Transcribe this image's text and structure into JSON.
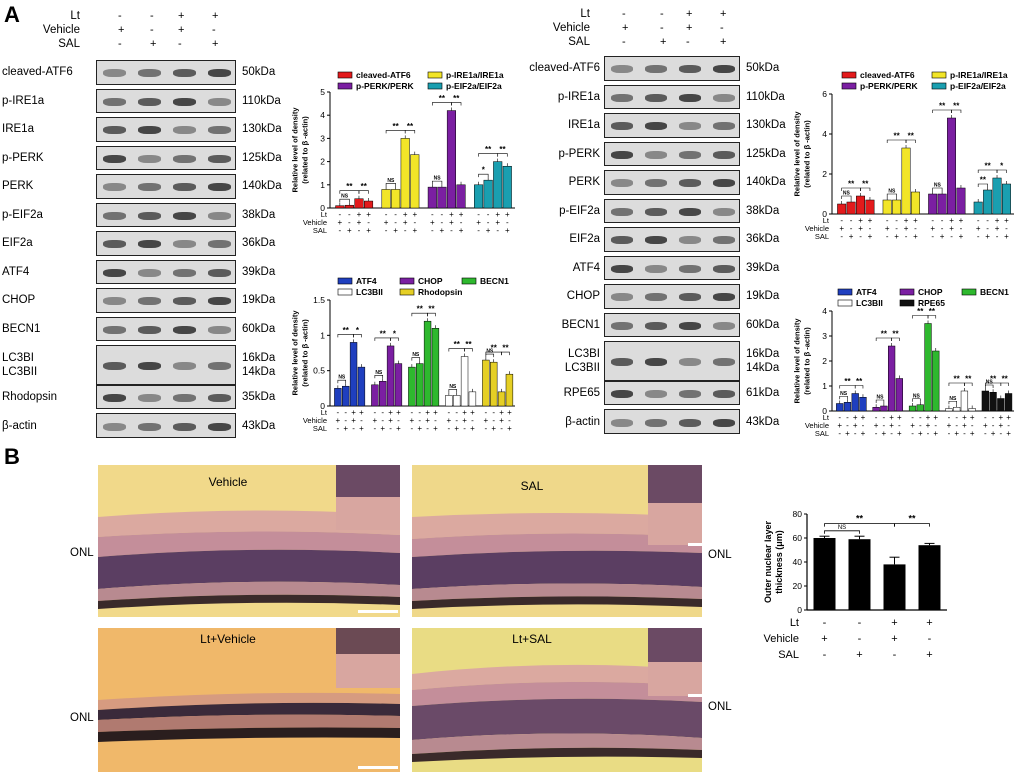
{
  "panelA": {
    "letter": "A",
    "left": {
      "conditions": [
        {
          "label": "Lt",
          "signs": [
            "-",
            "-",
            "+",
            "+"
          ]
        },
        {
          "label": "Vehicle",
          "signs": [
            "+",
            "-",
            "+",
            "-"
          ]
        },
        {
          "label": "SAL",
          "signs": [
            "-",
            "+",
            "-",
            "+"
          ]
        }
      ],
      "blots": [
        {
          "label": "cleaved-ATF6",
          "kda": "50kDa"
        },
        {
          "label": "p-IRE1a",
          "kda": "110kDa"
        },
        {
          "label": "IRE1a",
          "kda": "130kDa"
        },
        {
          "label": "p-PERK",
          "kda": "125kDa"
        },
        {
          "label": "PERK",
          "kda": "140kDa"
        },
        {
          "label": "p-EIF2a",
          "kda": "38kDa"
        },
        {
          "label": "EIF2a",
          "kda": "36kDa"
        },
        {
          "label": "ATF4",
          "kda": "39kDa"
        },
        {
          "label": "CHOP",
          "kda": "19kDa"
        },
        {
          "label": "BECN1",
          "kda": "60kDa"
        },
        {
          "label": "LC3BI\nLC3BII",
          "kda": "16kDa\n14kDa"
        },
        {
          "label": "Rhodopsin",
          "kda": "35kDa"
        },
        {
          "label": "β-actin",
          "kda": "43kDa"
        }
      ]
    },
    "right": {
      "conditions": [
        {
          "label": "Lt",
          "signs": [
            "-",
            "-",
            "+",
            "+"
          ]
        },
        {
          "label": "Vehicle",
          "signs": [
            "+",
            "-",
            "+",
            "-"
          ]
        },
        {
          "label": "SAL",
          "signs": [
            "-",
            "+",
            "-",
            "+"
          ]
        }
      ],
      "blots": [
        {
          "label": "cleaved-ATF6",
          "kda": "50kDa"
        },
        {
          "label": "p-IRE1a",
          "kda": "110kDa"
        },
        {
          "label": "IRE1a",
          "kda": "130kDa"
        },
        {
          "label": "p-PERK",
          "kda": "125kDa"
        },
        {
          "label": "PERK",
          "kda": "140kDa"
        },
        {
          "label": "p-EIF2a",
          "kda": "38kDa"
        },
        {
          "label": "EIF2a",
          "kda": "36kDa"
        },
        {
          "label": "ATF4",
          "kda": "39kDa"
        },
        {
          "label": "CHOP",
          "kda": "19kDa"
        },
        {
          "label": "BECN1",
          "kda": "60kDa"
        },
        {
          "label": "LC3BI\nLC3BII",
          "kda": "16kDa\n14kDa"
        },
        {
          "label": "RPE65",
          "kda": "61kDa"
        },
        {
          "label": "β-actin",
          "kda": "43kDa"
        }
      ]
    }
  },
  "chart_data": [
    {
      "type": "bar",
      "id": "left-top",
      "ylabel": "Relative level of density\n(related to β -actin)",
      "ylim": [
        0,
        5
      ],
      "yticks": [
        0,
        1,
        2,
        3,
        4,
        5
      ],
      "categories": [
        "cleaved-ATF6",
        "p-PERK/PERK",
        "p-IRE1a/IRE1a",
        "p-EIF2a/EIF2a"
      ],
      "legend_order": [
        "cleaved-ATF6",
        "p-IRE1a/IRE1a",
        "p-PERK/PERK",
        "p-EIF2a/EIF2a"
      ],
      "group_order": [
        "cleaved-ATF6",
        "p-IRE1a/IRE1a",
        "p-PERK/PERK",
        "p-EIF2a/EIF2a"
      ],
      "colors": {
        "cleaved-ATF6": "#e31a1c",
        "p-IRE1a/IRE1a": "#f2e528",
        "p-PERK/PERK": "#7b1fa2",
        "p-EIF2a/EIF2a": "#1a9fb0"
      },
      "groups": [
        {
          "name": "cleaved-ATF6",
          "values": [
            0.1,
            0.12,
            0.4,
            0.3
          ],
          "sig": [
            "NS",
            "**",
            "**"
          ]
        },
        {
          "name": "p-IRE1a/IRE1a",
          "values": [
            0.8,
            0.8,
            3.0,
            2.3
          ],
          "sig": [
            "NS",
            "**",
            "**"
          ]
        },
        {
          "name": "p-PERK/PERK",
          "values": [
            0.9,
            0.9,
            4.2,
            1.0
          ],
          "sig": [
            "NS",
            "**",
            "**"
          ]
        },
        {
          "name": "p-EIF2a/EIF2a",
          "values": [
            1.0,
            1.2,
            2.0,
            1.8
          ],
          "sig": [
            "*",
            "**",
            "**"
          ]
        }
      ],
      "rows": [
        {
          "label": "Lt",
          "signs": [
            "-",
            "-",
            "+",
            "+"
          ]
        },
        {
          "label": "Vehicle",
          "signs": [
            "+",
            "-",
            "+",
            "-"
          ]
        },
        {
          "label": "SAL",
          "signs": [
            "-",
            "+",
            "-",
            "+"
          ]
        }
      ]
    },
    {
      "type": "bar",
      "id": "left-bottom",
      "ylabel": "Relative level of density\n(related to β -actin)",
      "ylim": [
        0,
        1.5
      ],
      "yticks": [
        0.0,
        0.5,
        1.0,
        1.5
      ],
      "legend_order": [
        "ATF4",
        "CHOP",
        "BECN1",
        "LC3BII",
        "Rhodopsin"
      ],
      "colors": {
        "ATF4": "#1f3fbf",
        "CHOP": "#7b1fa2",
        "BECN1": "#2eb82e",
        "LC3BII": "#ffffff",
        "Rhodopsin": "#e5cf25"
      },
      "groups": [
        {
          "name": "ATF4",
          "values": [
            0.25,
            0.28,
            0.9,
            0.55
          ],
          "sig": [
            "NS",
            "**",
            "*"
          ]
        },
        {
          "name": "CHOP",
          "values": [
            0.3,
            0.35,
            0.85,
            0.6
          ],
          "sig": [
            "NS",
            "**",
            "*"
          ]
        },
        {
          "name": "BECN1",
          "values": [
            0.55,
            0.6,
            1.2,
            1.1
          ],
          "sig": [
            "NS",
            "**",
            "**"
          ]
        },
        {
          "name": "LC3BII",
          "values": [
            0.15,
            0.15,
            0.7,
            0.2
          ],
          "sig": [
            "NS",
            "**",
            "**"
          ]
        },
        {
          "name": "Rhodopsin",
          "values": [
            0.65,
            0.62,
            0.2,
            0.45
          ],
          "sig": [
            "NS",
            "**",
            "**"
          ]
        }
      ],
      "rows": [
        {
          "label": "Lt",
          "signs": [
            "-",
            "-",
            "+",
            "+"
          ]
        },
        {
          "label": "Vehicle",
          "signs": [
            "+",
            "-",
            "+",
            "-"
          ]
        },
        {
          "label": "SAL",
          "signs": [
            "-",
            "+",
            "-",
            "+"
          ]
        }
      ]
    },
    {
      "type": "bar",
      "id": "right-top",
      "ylabel": "Relative level of density\n(related to β -actin)",
      "ylim": [
        0,
        6
      ],
      "yticks": [
        0,
        2,
        4,
        6
      ],
      "legend_order": [
        "cleaved-ATF6",
        "p-IRE1a/IRE1a",
        "p-PERK/PERK",
        "p-EIF2a/EIF2a"
      ],
      "colors": {
        "cleaved-ATF6": "#e31a1c",
        "p-IRE1a/IRE1a": "#f2e528",
        "p-PERK/PERK": "#7b1fa2",
        "p-EIF2a/EIF2a": "#1a9fb0"
      },
      "groups": [
        {
          "name": "cleaved-ATF6",
          "values": [
            0.5,
            0.6,
            0.9,
            0.7
          ],
          "sig": [
            "NS",
            "**",
            "**"
          ]
        },
        {
          "name": "p-IRE1a/IRE1a",
          "values": [
            0.7,
            0.7,
            3.3,
            1.1
          ],
          "sig": [
            "NS",
            "**",
            "**"
          ]
        },
        {
          "name": "p-PERK/PERK",
          "values": [
            1.0,
            1.0,
            4.8,
            1.3
          ],
          "sig": [
            "NS",
            "**",
            "**"
          ]
        },
        {
          "name": "p-EIF2a/EIF2a",
          "values": [
            0.6,
            1.2,
            1.8,
            1.5
          ],
          "sig": [
            "**",
            "**",
            "*"
          ]
        }
      ],
      "rows": [
        {
          "label": "Lt",
          "signs": [
            "-",
            "-",
            "+",
            "+"
          ]
        },
        {
          "label": "Vehicle",
          "signs": [
            "+",
            "-",
            "+",
            "-"
          ]
        },
        {
          "label": "SAL",
          "signs": [
            "-",
            "+",
            "-",
            "+"
          ]
        }
      ]
    },
    {
      "type": "bar",
      "id": "right-bottom",
      "ylabel": "Relative level of density\n(related to β -actin)",
      "ylim": [
        0,
        4
      ],
      "yticks": [
        0,
        1,
        2,
        3,
        4
      ],
      "legend_order": [
        "ATF4",
        "CHOP",
        "BECN1",
        "LC3BII",
        "RPE65"
      ],
      "colors": {
        "ATF4": "#1f3fbf",
        "CHOP": "#7b1fa2",
        "BECN1": "#2eb82e",
        "LC3BII": "#ffffff",
        "RPE65": "#111111"
      },
      "groups": [
        {
          "name": "ATF4",
          "values": [
            0.3,
            0.35,
            0.7,
            0.55
          ],
          "sig": [
            "NS",
            "**",
            "**"
          ]
        },
        {
          "name": "CHOP",
          "values": [
            0.15,
            0.2,
            2.6,
            1.3
          ],
          "sig": [
            "NS",
            "**",
            "**"
          ]
        },
        {
          "name": "BECN1",
          "values": [
            0.2,
            0.25,
            3.5,
            2.4
          ],
          "sig": [
            "NS",
            "**",
            "**"
          ]
        },
        {
          "name": "LC3BII",
          "values": [
            0.1,
            0.15,
            0.8,
            0.1
          ],
          "sig": [
            "NS",
            "**",
            "**"
          ]
        },
        {
          "name": "RPE65",
          "values": [
            0.8,
            0.75,
            0.5,
            0.7
          ],
          "sig": [
            "NS",
            "**",
            "**"
          ]
        }
      ],
      "rows": [
        {
          "label": "Lt",
          "signs": [
            "-",
            "-",
            "+",
            "+"
          ]
        },
        {
          "label": "Vehicle",
          "signs": [
            "+",
            "-",
            "+",
            "-"
          ]
        },
        {
          "label": "SAL",
          "signs": [
            "-",
            "+",
            "-",
            "+"
          ]
        }
      ]
    },
    {
      "type": "bar",
      "id": "onl-thickness",
      "ylabel": "Outer nuclear layer\nthickness (μm)",
      "ylim": [
        0,
        80
      ],
      "yticks": [
        0,
        20,
        40,
        60,
        80
      ],
      "values": [
        60,
        59,
        38,
        54
      ],
      "errors": [
        1.5,
        2.5,
        6,
        1.5
      ],
      "sig": [
        {
          "from": 0,
          "to": 1,
          "label": "NS"
        },
        {
          "from": 0,
          "to": 2,
          "label": "**"
        },
        {
          "from": 2,
          "to": 3,
          "label": "**"
        }
      ],
      "rows": [
        {
          "label": "Lt",
          "signs": [
            "-",
            "-",
            "+",
            "+"
          ]
        },
        {
          "label": "Vehicle",
          "signs": [
            "+",
            "-",
            "+",
            "-"
          ]
        },
        {
          "label": "SAL",
          "signs": [
            "-",
            "+",
            "-",
            "+"
          ]
        }
      ]
    }
  ],
  "panelB": {
    "letter": "B",
    "images": [
      {
        "title": "Vehicle",
        "onl": "ONL"
      },
      {
        "title": "SAL",
        "onl": "ONL"
      },
      {
        "title": "Lt+Vehicle",
        "onl": "ONL"
      },
      {
        "title": "Lt+SAL",
        "onl": "ONL"
      }
    ]
  },
  "colors": {
    "tissue_bg": "#f3d88a",
    "tissue_pink": "#d9a7a2",
    "nuclei": "#5b3e62"
  }
}
